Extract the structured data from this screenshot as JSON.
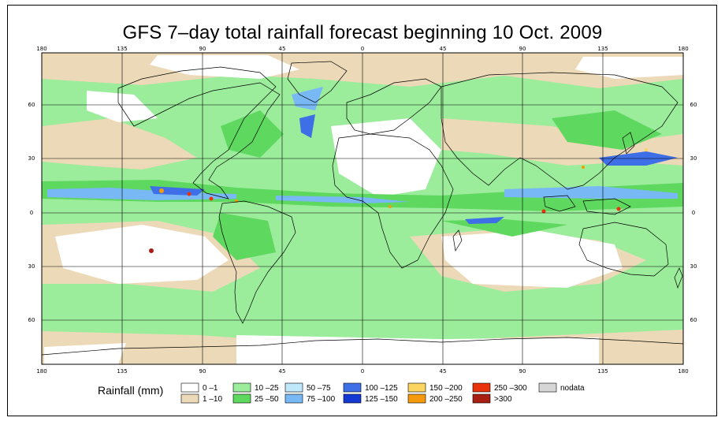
{
  "title": "GFS 7–day total rainfall forecast beginning 10 Oct. 2009",
  "axes": {
    "top_ticks": [
      "180",
      "135",
      "90",
      "45",
      "0",
      "45",
      "90",
      "135",
      "180"
    ],
    "bottom_ticks": [
      "180",
      "135",
      "90",
      "45",
      "0",
      "45",
      "90",
      "135",
      "180"
    ],
    "left_ticks": [
      "60",
      "30",
      "0",
      "30",
      "60"
    ],
    "right_ticks": [
      "60",
      "30",
      "0",
      "30",
      "60"
    ]
  },
  "legend": {
    "title": "Rainfall (mm)",
    "items": [
      {
        "label": "0 –1",
        "color": "#ffffff"
      },
      {
        "label": "1 –10",
        "color": "#ecd9b8"
      },
      {
        "label": "10 –25",
        "color": "#9bec9b"
      },
      {
        "label": "25 –50",
        "color": "#5fd85f"
      },
      {
        "label": "50 –75",
        "color": "#bfe8fb"
      },
      {
        "label": "75 –100",
        "color": "#78b8f4"
      },
      {
        "label": "100 –125",
        "color": "#3f6fe6"
      },
      {
        "label": "125 –150",
        "color": "#1438d2"
      },
      {
        "label": "150 –200",
        "color": "#fbd560"
      },
      {
        "label": "200 –250",
        "color": "#f59a0d"
      },
      {
        "label": "250 –300",
        "color": "#e8330c"
      },
      {
        "label": ">300",
        "color": "#a81e12"
      },
      {
        "label": "nodata",
        "color": "#d6d6d6"
      }
    ]
  },
  "colors": {
    "ocean_light": "#ecd9b8",
    "rain_light": "#9bec9b",
    "rain_mid": "#5fd85f",
    "heavy_blue": "#3f6fe6",
    "coast": "#000000"
  }
}
